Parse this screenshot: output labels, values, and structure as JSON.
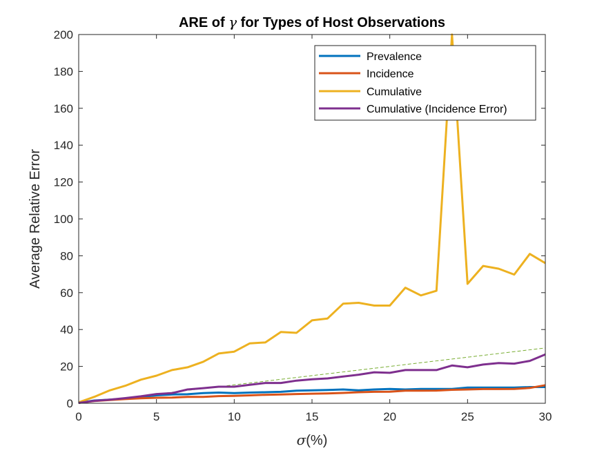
{
  "chart_data": {
    "type": "line",
    "title_parts": [
      "ARE of ",
      "γ",
      " for Types of Host Observations"
    ],
    "xlabel_parts": [
      "σ",
      "(%)"
    ],
    "ylabel": "Average Relative Error",
    "xlim": [
      0,
      30
    ],
    "ylim": [
      0,
      200
    ],
    "xticks": [
      0,
      5,
      10,
      15,
      20,
      25,
      30
    ],
    "yticks": [
      0,
      20,
      40,
      60,
      80,
      100,
      120,
      140,
      160,
      180,
      200
    ],
    "grid": false,
    "legend_position": "top-right",
    "x": [
      0,
      1,
      2,
      3,
      4,
      5,
      6,
      7,
      8,
      9,
      10,
      11,
      12,
      13,
      14,
      15,
      16,
      17,
      18,
      19,
      20,
      21,
      22,
      23,
      24,
      25,
      26,
      27,
      28,
      29,
      30
    ],
    "series": [
      {
        "name": "Prevalence",
        "color": "#0072BD",
        "values": [
          0.3,
          1.5,
          2.0,
          2.5,
          3.5,
          4.3,
          4.8,
          4.9,
          5.5,
          5.8,
          5.5,
          5.8,
          6.0,
          6.2,
          6.8,
          7.0,
          7.2,
          7.5,
          7.0,
          7.5,
          7.8,
          7.5,
          7.8,
          7.8,
          7.8,
          8.5,
          8.5,
          8.5,
          8.5,
          8.8,
          8.8
        ]
      },
      {
        "name": "Incidence",
        "color": "#D95319",
        "values": [
          0.3,
          1.2,
          1.8,
          2.3,
          2.7,
          3.0,
          3.1,
          3.5,
          3.5,
          3.9,
          4.0,
          4.3,
          4.6,
          4.8,
          5.0,
          5.2,
          5.3,
          5.6,
          6.0,
          6.2,
          6.3,
          6.8,
          6.8,
          6.9,
          7.3,
          7.5,
          7.7,
          7.7,
          7.8,
          8.3,
          9.8
        ]
      },
      {
        "name": "Cumulative",
        "color": "#EDB120",
        "values": [
          0.5,
          3.5,
          7.0,
          9.5,
          12.8,
          15.0,
          18.0,
          19.5,
          22.5,
          27.0,
          28.0,
          32.5,
          33.0,
          38.7,
          38.2,
          45.0,
          46.0,
          54.0,
          54.5,
          53.0,
          53.0,
          62.7,
          58.5,
          61.0,
          200,
          64.8,
          74.5,
          73.0,
          69.8,
          81.0,
          76.0
        ]
      },
      {
        "name": "Cumulative (Incidence Error)",
        "color": "#7E2F8E",
        "values": [
          0.2,
          1.3,
          2.0,
          2.8,
          3.8,
          5.0,
          5.5,
          7.5,
          8.2,
          9.0,
          9.0,
          10.0,
          11.0,
          11.0,
          12.3,
          13.0,
          13.5,
          14.5,
          15.5,
          16.8,
          16.5,
          18.0,
          18.0,
          18.0,
          20.5,
          19.5,
          21.0,
          21.8,
          21.5,
          23.0,
          26.5
        ]
      }
    ],
    "reference_line": {
      "style": "dashed",
      "color": "#77AC30",
      "x": [
        0,
        30
      ],
      "y": [
        0,
        30
      ]
    }
  }
}
